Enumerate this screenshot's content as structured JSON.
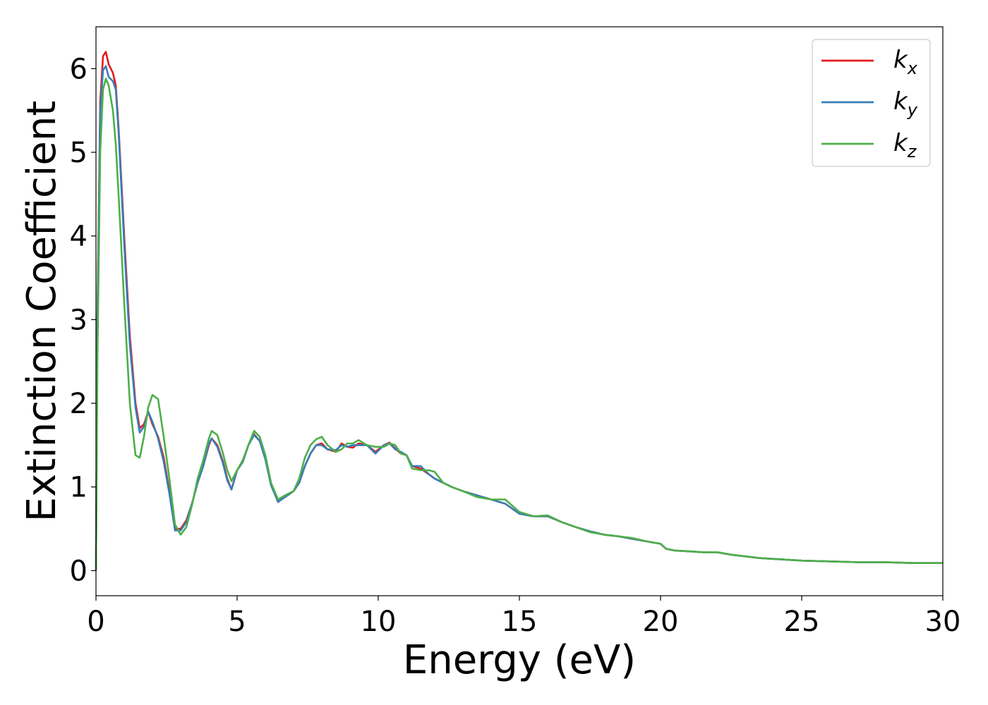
{
  "chart_data": {
    "type": "line",
    "xlabel": "Energy (eV)",
    "ylabel": "Extinction Coefficient",
    "xlim": [
      0,
      30
    ],
    "ylim": [
      -0.3,
      6.5
    ],
    "xticks": [
      0,
      5,
      10,
      15,
      20,
      25,
      30
    ],
    "yticks": [
      0,
      1,
      2,
      3,
      4,
      5,
      6
    ],
    "grid": false,
    "legend_position": "top-right",
    "series": [
      {
        "name": "k_x",
        "legend_base": "k",
        "legend_sub": "x",
        "color": "#e41a1c",
        "x": [
          0,
          0.05,
          0.15,
          0.25,
          0.35,
          0.45,
          0.6,
          0.7,
          0.8,
          1.0,
          1.2,
          1.4,
          1.55,
          1.7,
          1.85,
          2.0,
          2.2,
          2.4,
          2.6,
          2.8,
          3.0,
          3.2,
          3.4,
          3.6,
          3.8,
          4.0,
          4.1,
          4.3,
          4.5,
          4.65,
          4.8,
          5.0,
          5.2,
          5.4,
          5.6,
          5.8,
          6.0,
          6.2,
          6.45,
          6.7,
          7.0,
          7.2,
          7.4,
          7.6,
          7.8,
          8.0,
          8.2,
          8.5,
          8.7,
          8.9,
          9.1,
          9.3,
          9.6,
          9.9,
          10.2,
          10.4,
          10.6,
          10.8,
          11.0,
          11.2,
          11.5,
          11.8,
          12.0,
          12.3,
          12.6,
          13.0,
          13.5,
          14.0,
          14.5,
          15.0,
          15.5,
          16.0,
          16.5,
          17.0,
          17.5,
          18.0,
          18.5,
          19.0,
          19.5,
          20.0,
          20.2,
          20.5,
          21.0,
          21.5,
          22.0,
          22.5,
          23.0,
          23.5,
          24.0,
          25.0,
          26.0,
          27.0,
          28.0,
          29.0,
          30.0
        ],
        "y": [
          0,
          3.0,
          5.6,
          6.15,
          6.2,
          6.05,
          5.95,
          5.8,
          5.3,
          4.0,
          2.8,
          2.0,
          1.7,
          1.75,
          1.9,
          1.75,
          1.6,
          1.35,
          0.95,
          0.5,
          0.5,
          0.6,
          0.8,
          1.05,
          1.25,
          1.5,
          1.58,
          1.5,
          1.3,
          1.1,
          0.97,
          1.2,
          1.3,
          1.5,
          1.63,
          1.55,
          1.35,
          1.05,
          0.83,
          0.88,
          0.95,
          1.05,
          1.25,
          1.4,
          1.5,
          1.52,
          1.45,
          1.42,
          1.52,
          1.48,
          1.47,
          1.52,
          1.5,
          1.42,
          1.5,
          1.53,
          1.46,
          1.4,
          1.38,
          1.25,
          1.22,
          1.15,
          1.1,
          1.05,
          1.0,
          0.95,
          0.9,
          0.85,
          0.8,
          0.68,
          0.65,
          0.65,
          0.58,
          0.52,
          0.47,
          0.43,
          0.41,
          0.38,
          0.35,
          0.32,
          0.26,
          0.24,
          0.23,
          0.22,
          0.22,
          0.19,
          0.17,
          0.15,
          0.14,
          0.12,
          0.11,
          0.1,
          0.1,
          0.09,
          0.09
        ]
      },
      {
        "name": "k_y",
        "legend_base": "k",
        "legend_sub": "y",
        "color": "#377eb8",
        "x": [
          0,
          0.05,
          0.15,
          0.25,
          0.35,
          0.45,
          0.6,
          0.7,
          0.8,
          1.0,
          1.2,
          1.4,
          1.55,
          1.7,
          1.85,
          2.0,
          2.2,
          2.4,
          2.6,
          2.8,
          3.0,
          3.2,
          3.4,
          3.6,
          3.8,
          4.0,
          4.1,
          4.3,
          4.5,
          4.65,
          4.8,
          5.0,
          5.2,
          5.4,
          5.6,
          5.8,
          6.0,
          6.2,
          6.45,
          6.7,
          7.0,
          7.2,
          7.4,
          7.6,
          7.8,
          8.0,
          8.2,
          8.5,
          8.7,
          8.9,
          9.1,
          9.3,
          9.6,
          9.9,
          10.2,
          10.4,
          10.6,
          10.8,
          11.0,
          11.2,
          11.5,
          11.8,
          12.0,
          12.3,
          12.6,
          13.0,
          13.5,
          14.0,
          14.5,
          15.0,
          15.5,
          16.0,
          16.5,
          17.0,
          17.5,
          18.0,
          18.5,
          19.0,
          19.5,
          20.0,
          20.2,
          20.5,
          21.0,
          21.5,
          22.0,
          22.5,
          23.0,
          23.5,
          24.0,
          25.0,
          26.0,
          27.0,
          28.0,
          29.0,
          30.0
        ],
        "y": [
          0,
          2.9,
          5.5,
          5.98,
          6.03,
          5.9,
          5.85,
          5.75,
          5.25,
          3.9,
          2.7,
          1.95,
          1.65,
          1.72,
          1.9,
          1.78,
          1.58,
          1.3,
          0.92,
          0.48,
          0.48,
          0.58,
          0.8,
          1.05,
          1.25,
          1.52,
          1.58,
          1.48,
          1.28,
          1.08,
          0.97,
          1.2,
          1.3,
          1.5,
          1.62,
          1.55,
          1.33,
          1.02,
          0.82,
          0.88,
          0.95,
          1.05,
          1.25,
          1.4,
          1.5,
          1.5,
          1.45,
          1.44,
          1.5,
          1.48,
          1.5,
          1.5,
          1.5,
          1.4,
          1.5,
          1.52,
          1.45,
          1.42,
          1.38,
          1.25,
          1.25,
          1.15,
          1.1,
          1.05,
          1.0,
          0.95,
          0.9,
          0.85,
          0.8,
          0.68,
          0.65,
          0.65,
          0.58,
          0.52,
          0.47,
          0.43,
          0.41,
          0.38,
          0.35,
          0.32,
          0.26,
          0.24,
          0.23,
          0.22,
          0.22,
          0.19,
          0.17,
          0.15,
          0.14,
          0.12,
          0.11,
          0.1,
          0.1,
          0.09,
          0.09
        ]
      },
      {
        "name": "k_z",
        "legend_base": "k",
        "legend_sub": "z",
        "color": "#4daf4a",
        "x": [
          0,
          0.05,
          0.15,
          0.25,
          0.35,
          0.45,
          0.6,
          0.7,
          0.8,
          1.0,
          1.2,
          1.4,
          1.55,
          1.7,
          1.85,
          2.0,
          2.2,
          2.4,
          2.6,
          2.8,
          3.0,
          3.2,
          3.4,
          3.6,
          3.8,
          4.0,
          4.1,
          4.3,
          4.5,
          4.65,
          4.8,
          5.0,
          5.2,
          5.4,
          5.6,
          5.8,
          6.0,
          6.2,
          6.45,
          6.7,
          7.0,
          7.2,
          7.4,
          7.6,
          7.8,
          8.0,
          8.2,
          8.5,
          8.7,
          8.9,
          9.1,
          9.3,
          9.6,
          9.9,
          10.2,
          10.4,
          10.6,
          10.8,
          11.0,
          11.2,
          11.5,
          11.8,
          12.0,
          12.3,
          12.6,
          13.0,
          13.5,
          14.0,
          14.5,
          15.0,
          15.5,
          16.0,
          16.5,
          17.0,
          17.5,
          18.0,
          18.5,
          19.0,
          19.5,
          20.0,
          20.2,
          20.5,
          21.0,
          21.5,
          22.0,
          22.5,
          23.0,
          23.5,
          24.0,
          25.0,
          26.0,
          27.0,
          28.0,
          29.0,
          30.0
        ],
        "y": [
          0,
          2.5,
          5.0,
          5.75,
          5.88,
          5.8,
          5.5,
          5.1,
          4.5,
          3.2,
          2.0,
          1.38,
          1.35,
          1.6,
          1.95,
          2.1,
          2.05,
          1.6,
          1.1,
          0.55,
          0.43,
          0.52,
          0.78,
          1.1,
          1.32,
          1.58,
          1.67,
          1.62,
          1.4,
          1.2,
          1.07,
          1.2,
          1.32,
          1.5,
          1.67,
          1.6,
          1.38,
          1.05,
          0.85,
          0.9,
          0.95,
          1.1,
          1.35,
          1.5,
          1.57,
          1.6,
          1.5,
          1.42,
          1.45,
          1.52,
          1.52,
          1.56,
          1.5,
          1.48,
          1.48,
          1.52,
          1.5,
          1.4,
          1.38,
          1.22,
          1.2,
          1.2,
          1.18,
          1.05,
          1.0,
          0.95,
          0.88,
          0.85,
          0.85,
          0.7,
          0.65,
          0.66,
          0.58,
          0.52,
          0.46,
          0.43,
          0.41,
          0.39,
          0.35,
          0.32,
          0.26,
          0.24,
          0.23,
          0.22,
          0.22,
          0.19,
          0.17,
          0.15,
          0.14,
          0.12,
          0.11,
          0.1,
          0.1,
          0.09,
          0.09
        ]
      }
    ]
  }
}
